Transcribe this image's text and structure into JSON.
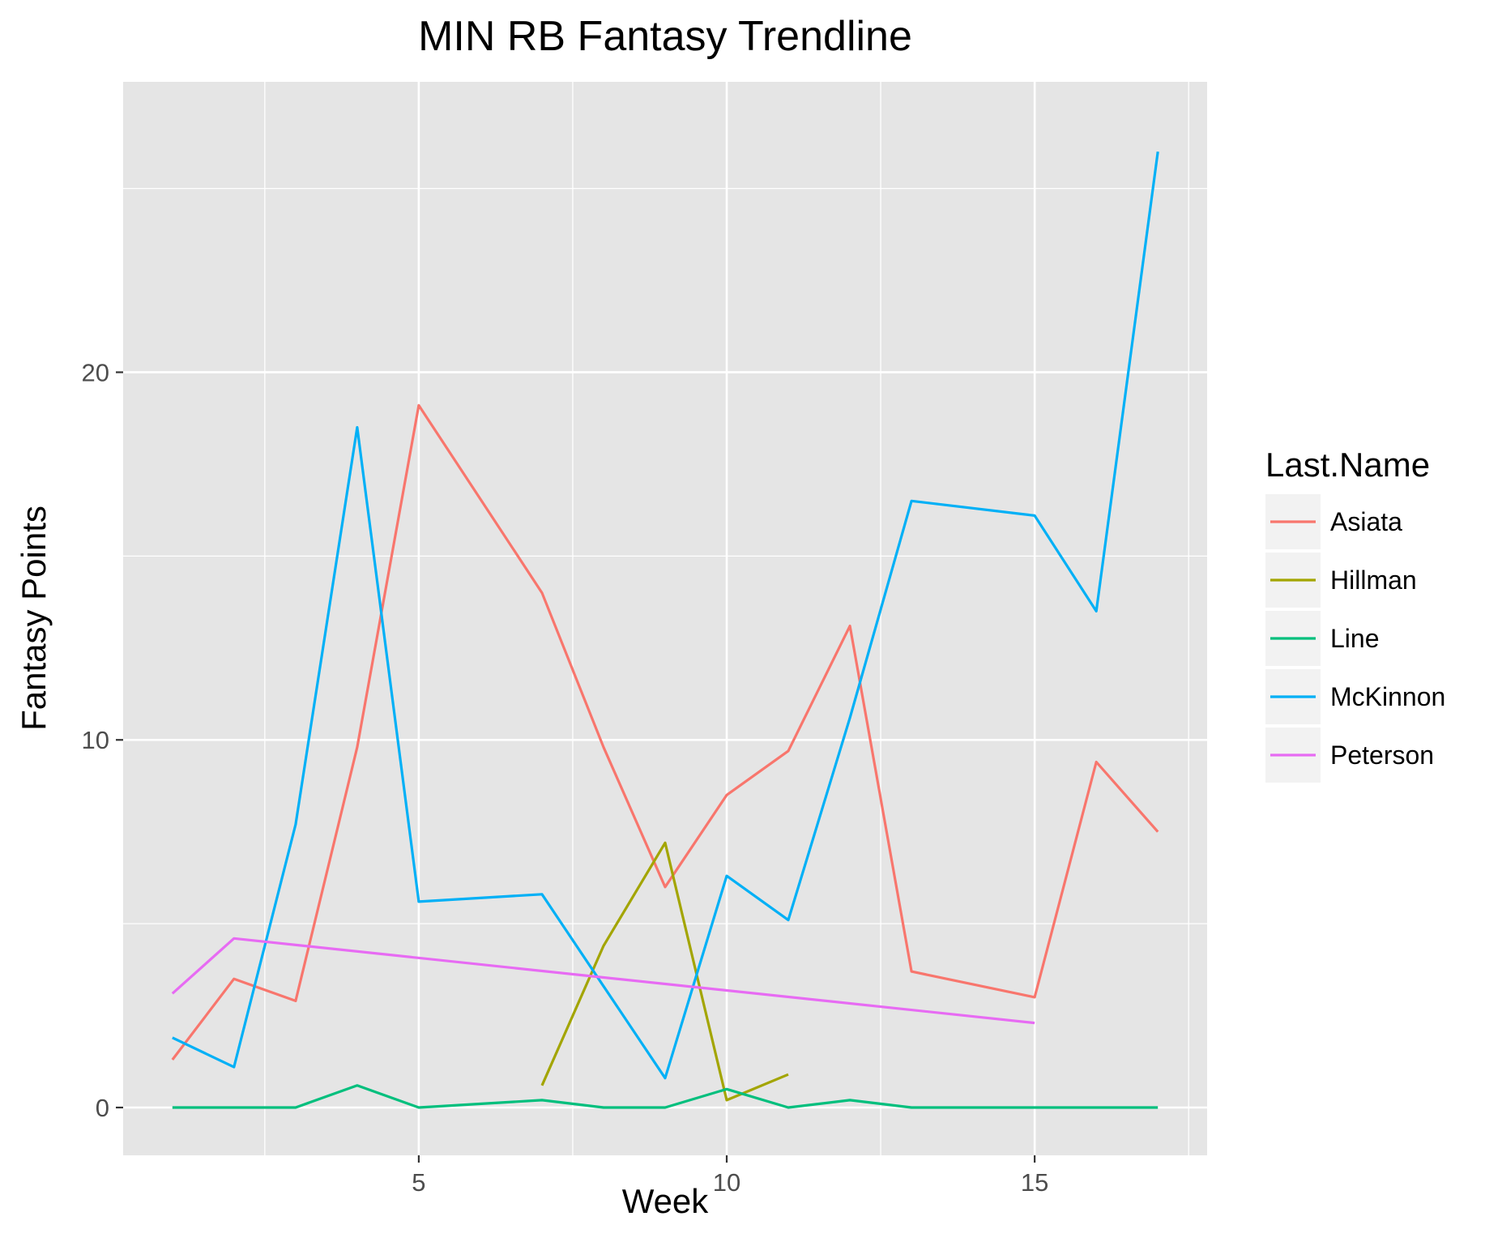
{
  "chart_data": {
    "type": "line",
    "title": "MIN RB Fantasy Trendline",
    "xlabel": "Week",
    "ylabel": "Fantasy Points",
    "xlim": [
      0.2,
      17.8
    ],
    "ylim": [
      -1.3,
      27.9
    ],
    "x_ticks": [
      5,
      10,
      15
    ],
    "x_tick_labels": [
      "5",
      "10",
      "15"
    ],
    "x_minor_ticks": [
      2.5,
      7.5,
      12.5,
      17.5
    ],
    "y_ticks": [
      0,
      10,
      20
    ],
    "y_tick_labels": [
      "0",
      "10",
      "20"
    ],
    "y_minor_ticks": [
      5,
      15,
      25
    ],
    "grid": true,
    "legend_title": "Last.Name",
    "legend_position": "right",
    "series": [
      {
        "name": "Asiata",
        "color": "#F8766D",
        "points": [
          [
            1,
            1.3
          ],
          [
            2,
            3.5
          ],
          [
            3,
            2.9
          ],
          [
            4,
            9.8
          ],
          [
            5,
            19.1
          ],
          [
            7,
            14.0
          ],
          [
            8,
            9.8
          ],
          [
            9,
            6.0
          ],
          [
            10,
            8.5
          ],
          [
            11,
            9.7
          ],
          [
            12,
            13.1
          ],
          [
            13,
            3.7
          ],
          [
            15,
            3.0
          ],
          [
            16,
            9.4
          ],
          [
            17,
            7.5
          ]
        ]
      },
      {
        "name": "Hillman",
        "color": "#A3A500",
        "points": [
          [
            7,
            0.6
          ],
          [
            8,
            4.4
          ],
          [
            9,
            7.2
          ],
          [
            10,
            0.2
          ],
          [
            11,
            0.9
          ]
        ]
      },
      {
        "name": "Line",
        "color": "#00BF7D",
        "points": [
          [
            1,
            0.0
          ],
          [
            2,
            0.0
          ],
          [
            3,
            0.0
          ],
          [
            4,
            0.6
          ],
          [
            5,
            0.0
          ],
          [
            7,
            0.2
          ],
          [
            8,
            0.0
          ],
          [
            9,
            0.0
          ],
          [
            10,
            0.5
          ],
          [
            11,
            0.0
          ],
          [
            12,
            0.2
          ],
          [
            13,
            0.0
          ],
          [
            14,
            0.0
          ],
          [
            15,
            0.0
          ],
          [
            16,
            0.0
          ],
          [
            17,
            0.0
          ]
        ]
      },
      {
        "name": "McKinnon",
        "color": "#00B0F6",
        "points": [
          [
            1,
            1.9
          ],
          [
            2,
            1.1
          ],
          [
            3,
            7.7
          ],
          [
            4,
            18.5
          ],
          [
            5,
            5.6
          ],
          [
            7,
            5.8
          ],
          [
            8,
            3.3
          ],
          [
            9,
            0.8
          ],
          [
            10,
            6.3
          ],
          [
            11,
            5.1
          ],
          [
            12,
            10.6
          ],
          [
            13,
            16.5
          ],
          [
            15,
            16.1
          ],
          [
            16,
            13.5
          ],
          [
            17,
            26.0
          ]
        ]
      },
      {
        "name": "Peterson",
        "color": "#E76BF3",
        "points": [
          [
            1,
            3.1
          ],
          [
            2,
            4.6
          ],
          [
            15,
            2.3
          ]
        ]
      }
    ]
  },
  "colors": {
    "panel_background": "#E5E5E5",
    "grid_line": "#FFFFFF",
    "legend_key_background": "#F2F2F2",
    "tick_mark": "#333333"
  }
}
